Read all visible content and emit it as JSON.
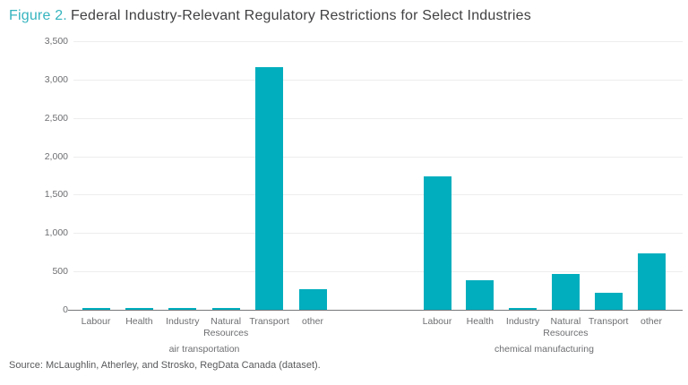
{
  "title": {
    "figure_label": "Figure 2.",
    "text": "Federal Industry-Relevant Regulatory Restrictions for Select Industries"
  },
  "source": "Source: McLaughlin, Atherley, and Strosko, RegData Canada (dataset).",
  "colors": {
    "bar": "#00aebd",
    "figure_label": "#35b4bf",
    "title_text": "#414042",
    "axis_text": "#6d6e71",
    "gridline": "#ededee",
    "baseline": "#77787b"
  },
  "chart_data": {
    "type": "bar",
    "title": "Figure 2. Federal Industry-Relevant Regulatory Restrictions for Select Industries",
    "categories": [
      "Labour",
      "Health",
      "Industry",
      "Natural Resources",
      "Transport",
      "other"
    ],
    "groups": [
      {
        "label": "air transportation",
        "values": [
          15,
          25,
          12,
          22,
          3160,
          265
        ]
      },
      {
        "label": "chemical manufacturing",
        "values": [
          1740,
          380,
          10,
          465,
          225,
          730
        ]
      }
    ],
    "xlabel": "",
    "ylabel": "",
    "ylim": [
      0,
      3500
    ],
    "ytick_step": 500,
    "yticks": [
      "0",
      "500",
      "1,000",
      "1,500",
      "2,000",
      "2,500",
      "3,000",
      "3,500"
    ],
    "grid": true,
    "legend": false
  }
}
